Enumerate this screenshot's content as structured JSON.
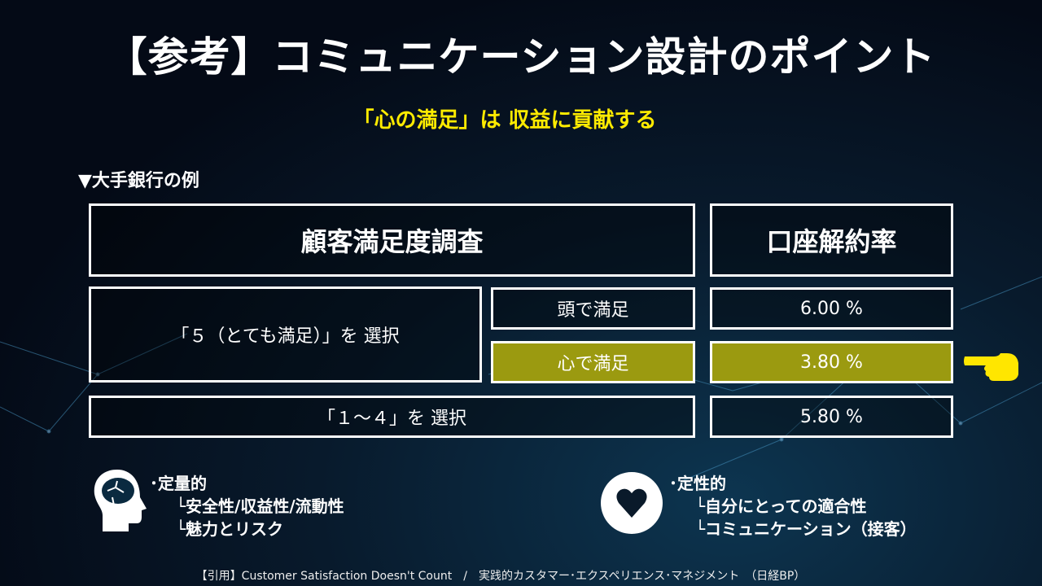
{
  "title": "【参考】コミュニケーション設計のポイント",
  "subtitle": "「心の満足」は 収益に貢献する",
  "example_label": "▼大手銀行の例",
  "table": {
    "header_survey": "顧客満足度調査",
    "header_rate": "口座解約率",
    "row_select5": "「５（とても満足）」を 選択",
    "head_satisfied": "頭で満足",
    "heart_satisfied": "心で満足",
    "row_select1_4": "「１～４」を 選択",
    "rate_head": "6.00 %",
    "rate_heart": "3.80 %",
    "rate_1_4": "5.80 %"
  },
  "highlight_color": "#9b9a10",
  "quantitative": {
    "icon": "brain-head-icon",
    "title": "･定量的",
    "items": [
      "└安全性/収益性/流動性",
      "└魅力とリスク"
    ]
  },
  "qualitative": {
    "icon": "heart-icon",
    "title": "･定性的",
    "items": [
      "└自分にとっての適合性",
      "└コミュニケーション（接客）"
    ]
  },
  "footer": "【引用】Customer Satisfaction Doesn't Count　/　実践的カスタマー･エクスペリエンス･マネジメント　（日経BP）"
}
